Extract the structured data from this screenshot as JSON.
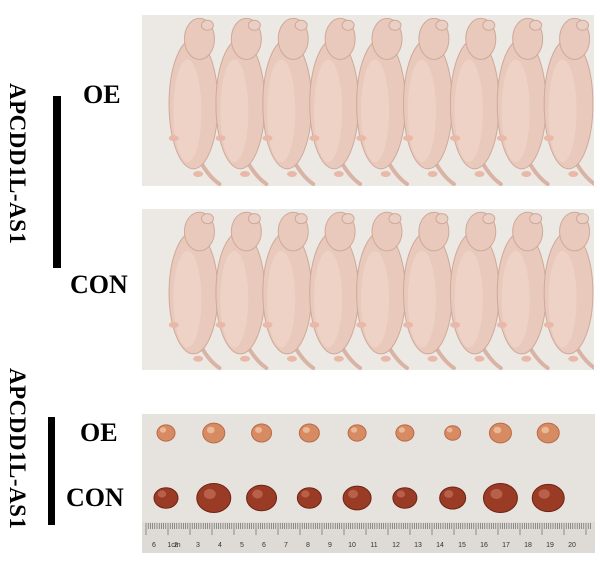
{
  "panel_top": {
    "vertical_label": "APCDD1L-AS1",
    "group_oe": "OE",
    "group_con": "CON",
    "mice_per_group": 9
  },
  "panel_bottom": {
    "vertical_label": "APCDD1L-AS1",
    "group_oe": "OE",
    "group_con": "CON",
    "tumors_per_group": 9,
    "ruler_label": "1cm",
    "ruler_numbers": [
      "6",
      "2",
      "3",
      "4",
      "5",
      "6",
      "7",
      "8",
      "9",
      "10",
      "11",
      "12",
      "13",
      "14",
      "15",
      "16",
      "17",
      "18",
      "19",
      "20"
    ]
  },
  "colors": {
    "background_photo": "#ece9e5",
    "mouse_skin": "#e8c9bb",
    "tumor_oe": "#d68b63",
    "tumor_con": "#9a3b25"
  }
}
